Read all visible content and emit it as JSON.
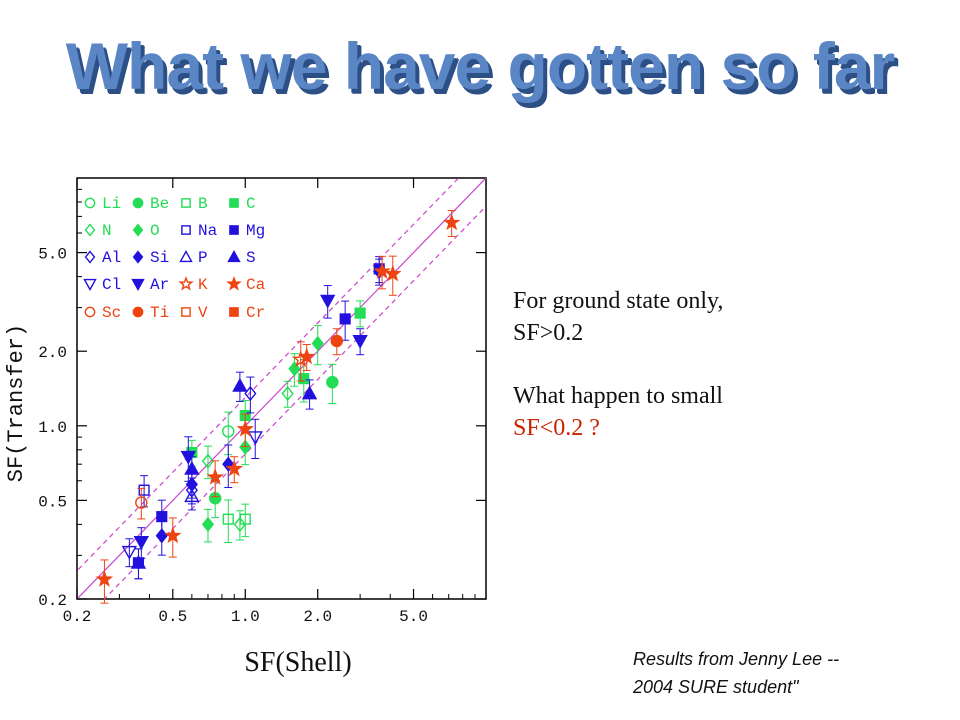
{
  "slide": {
    "title": "What we have gotten so far",
    "note1_line1": "For ground state only,",
    "note1_line2": "SF>0.2",
    "note2_line1": "What happen to small",
    "note2_line2": "SF<0.2 ?",
    "credit_line1": "Results from Jenny Lee --",
    "credit_line2": "2004 SURE student\""
  },
  "chart_data": {
    "type": "scatter",
    "xscale": "log",
    "yscale": "log",
    "xlabel": "SF(Shell)",
    "ylabel": "SF(Transfer)",
    "xlim": [
      0.2,
      10
    ],
    "ylim": [
      0.2,
      10
    ],
    "xticks": [
      0.2,
      0.5,
      1.0,
      2.0,
      5.0
    ],
    "yticks": [
      0.2,
      0.5,
      1.0,
      2.0,
      5.0
    ],
    "xticklabels": [
      "0.2",
      "0.5",
      "1.0",
      "2.0",
      "5.0"
    ],
    "yticklabels": [
      "0.2",
      "0.5",
      "1.0",
      "2.0",
      "5.0"
    ],
    "reference_lines": [
      {
        "kind": "y=x",
        "style": "solid",
        "color": "#cc44cc"
      },
      {
        "kind": "y=1.3x",
        "style": "dashed",
        "color": "#cc44cc"
      },
      {
        "kind": "y=x/1.3",
        "style": "dashed",
        "color": "#cc44cc"
      }
    ],
    "legend_position": "top-left",
    "series": [
      {
        "name": "Li",
        "marker": "circle",
        "filled": false,
        "color": "#22dd55",
        "points": [
          [
            0.85,
            0.95
          ]
        ]
      },
      {
        "name": "Be",
        "marker": "circle",
        "filled": true,
        "color": "#22dd55",
        "points": [
          [
            0.75,
            0.51
          ],
          [
            2.3,
            1.5
          ]
        ]
      },
      {
        "name": "B",
        "marker": "square",
        "filled": false,
        "color": "#22dd55",
        "points": [
          [
            0.85,
            0.42
          ],
          [
            1.0,
            0.42
          ]
        ]
      },
      {
        "name": "C",
        "marker": "square",
        "filled": true,
        "color": "#22dd55",
        "points": [
          [
            1.0,
            1.1
          ],
          [
            0.6,
            0.78
          ],
          [
            1.75,
            1.55
          ],
          [
            3.0,
            2.85
          ]
        ]
      },
      {
        "name": "N",
        "marker": "diamond",
        "filled": false,
        "color": "#22dd55",
        "points": [
          [
            0.95,
            0.4
          ],
          [
            0.7,
            0.72
          ],
          [
            1.5,
            1.35
          ]
        ]
      },
      {
        "name": "O",
        "marker": "diamond",
        "filled": true,
        "color": "#22dd55",
        "points": [
          [
            0.7,
            0.4
          ],
          [
            1.0,
            0.82
          ],
          [
            1.6,
            1.7
          ],
          [
            2.0,
            2.15
          ]
        ]
      },
      {
        "name": "Na",
        "marker": "square",
        "filled": false,
        "color": "#2211dd",
        "points": [
          [
            0.38,
            0.55
          ]
        ]
      },
      {
        "name": "Mg",
        "marker": "square",
        "filled": true,
        "color": "#2211dd",
        "points": [
          [
            0.36,
            0.28
          ],
          [
            0.45,
            0.43
          ],
          [
            2.6,
            2.7
          ],
          [
            3.6,
            4.3
          ]
        ]
      },
      {
        "name": "Al",
        "marker": "diamond",
        "filled": false,
        "color": "#2211dd",
        "points": [
          [
            1.05,
            1.35
          ],
          [
            0.6,
            0.55
          ]
        ]
      },
      {
        "name": "Si",
        "marker": "diamond",
        "filled": true,
        "color": "#2211dd",
        "points": [
          [
            0.45,
            0.36
          ],
          [
            0.6,
            0.58
          ],
          [
            0.85,
            0.7
          ],
          [
            3.6,
            4.2
          ]
        ]
      },
      {
        "name": "P",
        "marker": "triangle-up",
        "filled": false,
        "color": "#2211dd",
        "points": [
          [
            0.6,
            0.52
          ]
        ]
      },
      {
        "name": "S",
        "marker": "triangle-up",
        "filled": true,
        "color": "#2211dd",
        "points": [
          [
            0.36,
            0.28
          ],
          [
            0.6,
            0.67
          ],
          [
            0.95,
            1.45
          ],
          [
            1.85,
            1.35
          ]
        ]
      },
      {
        "name": "Cl",
        "marker": "triangle-down",
        "filled": false,
        "color": "#2211dd",
        "points": [
          [
            0.33,
            0.31
          ],
          [
            1.1,
            0.9
          ]
        ]
      },
      {
        "name": "Ar",
        "marker": "triangle-down",
        "filled": true,
        "color": "#2211dd",
        "points": [
          [
            0.37,
            0.34
          ],
          [
            0.58,
            0.75
          ],
          [
            2.2,
            3.2
          ],
          [
            3.0,
            2.2
          ]
        ]
      },
      {
        "name": "K",
        "marker": "star",
        "filled": false,
        "color": "#ee4411",
        "points": [
          [
            1.7,
            1.85
          ]
        ]
      },
      {
        "name": "Ca",
        "marker": "star",
        "filled": true,
        "color": "#ee4411",
        "points": [
          [
            0.26,
            0.24
          ],
          [
            0.5,
            0.36
          ],
          [
            0.75,
            0.62
          ],
          [
            0.9,
            0.67
          ],
          [
            1.0,
            0.97
          ],
          [
            1.8,
            1.9
          ],
          [
            3.7,
            4.2
          ],
          [
            4.1,
            4.1
          ],
          [
            7.2,
            6.6
          ]
        ]
      },
      {
        "name": "Sc",
        "marker": "circle",
        "filled": false,
        "color": "#ee4411",
        "points": [
          [
            0.37,
            0.49
          ]
        ]
      },
      {
        "name": "Ti",
        "marker": "circle",
        "filled": true,
        "color": "#ee4411",
        "points": [
          [
            2.4,
            2.2
          ]
        ]
      },
      {
        "name": "V",
        "marker": "square",
        "filled": false,
        "color": "#ee4411",
        "points": []
      },
      {
        "name": "Cr",
        "marker": "square",
        "filled": true,
        "color": "#ee4411",
        "points": []
      }
    ]
  }
}
